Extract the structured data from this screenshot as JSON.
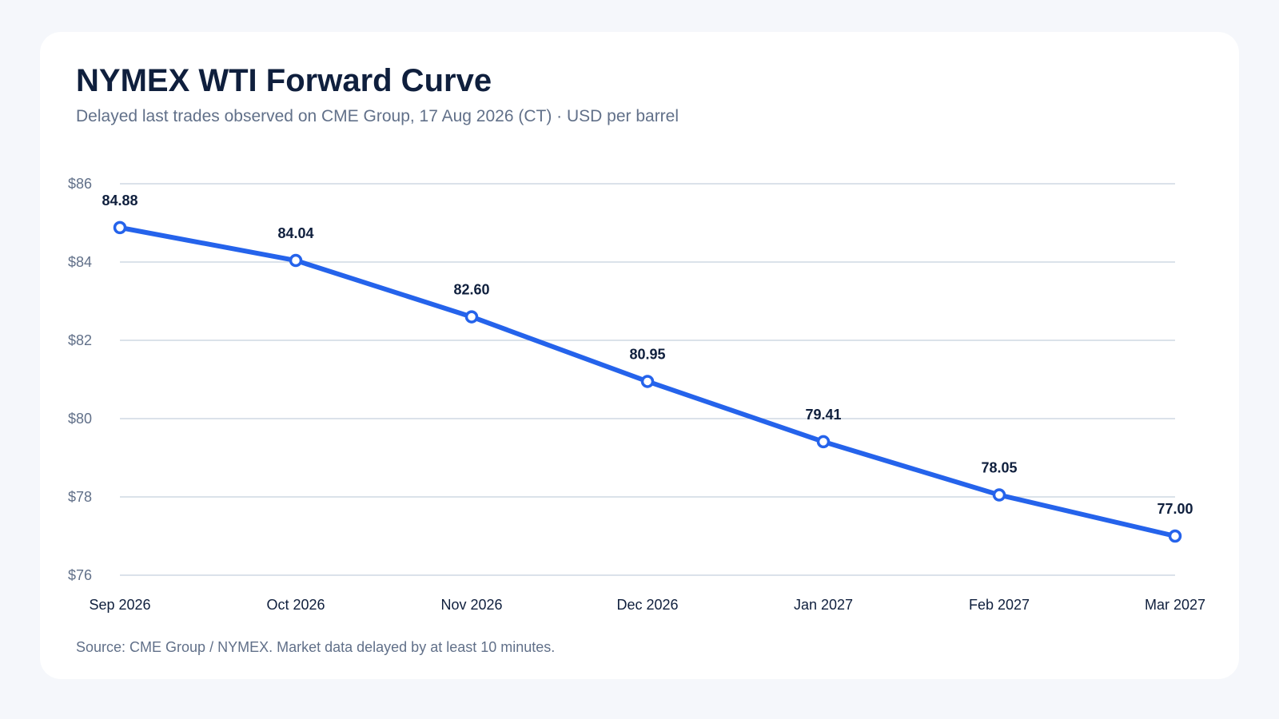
{
  "header": {
    "title": "NYMEX WTI Forward Curve",
    "subtitle": "Delayed last trades observed on CME Group, 17 Aug 2026 (CT) · USD per barrel"
  },
  "footer": {
    "source": "Source: CME Group / NYMEX. Market data delayed by at least 10 minutes."
  },
  "colors": {
    "line": "#2563eb",
    "grid": "#cfd8e3",
    "card": "#ffffff",
    "background": "#f5f7fb"
  },
  "chart_data": {
    "type": "line",
    "categories": [
      "Sep 2026",
      "Oct 2026",
      "Nov 2026",
      "Dec 2026",
      "Jan 2027",
      "Feb 2027",
      "Mar 2027"
    ],
    "series": [
      {
        "values": [
          84.88,
          84.04,
          82.6,
          80.95,
          79.41,
          78.05,
          77.0
        ]
      }
    ],
    "data_labels": [
      "84.88",
      "84.04",
      "82.60",
      "80.95",
      "79.41",
      "78.05",
      "77.00"
    ],
    "yticks": [
      76,
      78,
      80,
      82,
      84,
      86
    ],
    "ytick_labels": [
      "$76",
      "$78",
      "$80",
      "$82",
      "$84",
      "$86"
    ],
    "ylim": [
      76,
      86
    ],
    "grid": true,
    "legend": "none",
    "markers": "hollow-circle"
  }
}
